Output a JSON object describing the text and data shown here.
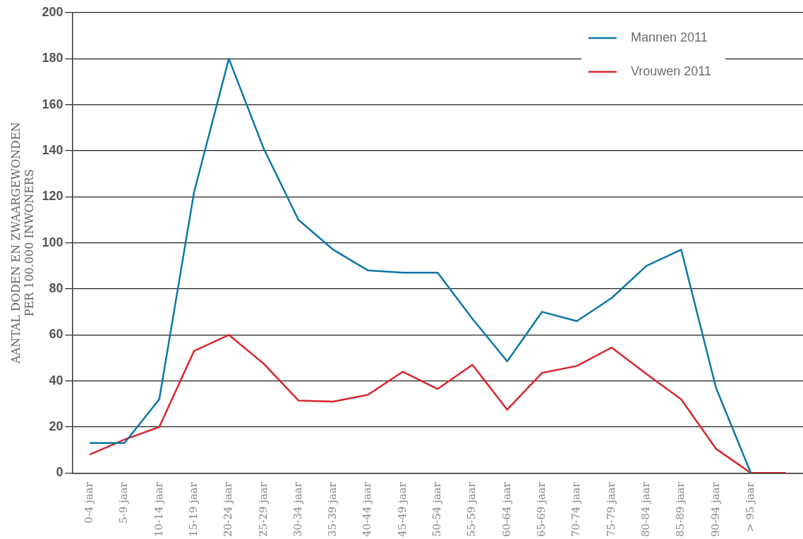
{
  "chart_data": {
    "type": "line",
    "ylabel": "AANTAL DODEN EN ZWAARGEWONDEN\nPER 100.000 INWONERS",
    "categories": [
      "0-4 jaar",
      "5-9 jaar",
      "10-14 jaar",
      "15-19 jaar",
      "20-24 jaar",
      "25-29 jaar",
      "30-34 jaar",
      "35-39 jaar",
      "40-44 jaar",
      "45-49 jaar",
      "50-54 jaar",
      "55-59 jaar",
      "60-64 jaar",
      "65-69 jaar",
      "70-74 jaar",
      "75-79 jaar",
      "80-84 jaar",
      "85-89 jaar",
      "90-94 jaar",
      "> 95 jaar",
      null
    ],
    "series": [
      {
        "name": "Mannen 2011",
        "color": "#0a77a8",
        "values": [
          13,
          13,
          32,
          122,
          180,
          141,
          110,
          97,
          88,
          87,
          87,
          67,
          48.5,
          70,
          66,
          76,
          90,
          97,
          37,
          0,
          null
        ]
      },
      {
        "name": "Vrouwen 2011",
        "color": "#d7262e",
        "values": [
          8,
          14.5,
          20,
          53,
          60,
          47.5,
          31.5,
          31,
          34,
          44,
          36.5,
          47,
          27.5,
          43.5,
          46.5,
          54.5,
          43,
          32,
          10.5,
          0,
          0
        ]
      }
    ],
    "ylim": [
      0,
      200
    ],
    "yticks": [
      0,
      20,
      40,
      60,
      80,
      100,
      120,
      140,
      160,
      180,
      200
    ],
    "grid": "y",
    "legend": "top right",
    "marker": "none",
    "line_style": "solid"
  }
}
